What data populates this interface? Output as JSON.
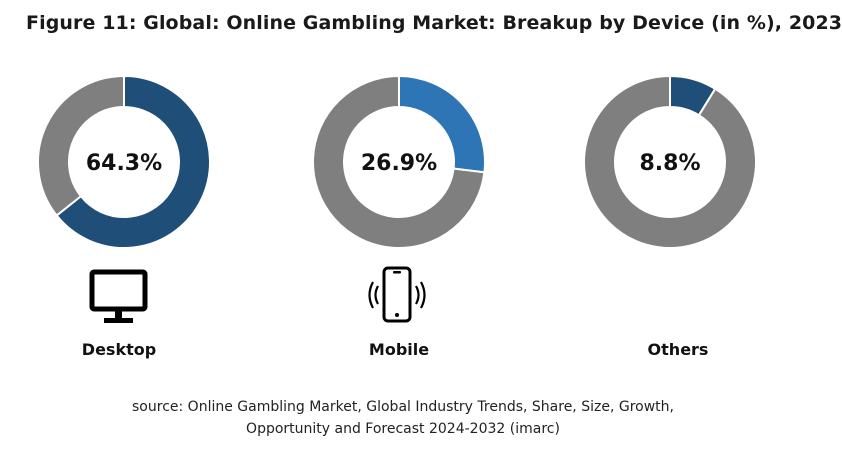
{
  "chart_data": {
    "type": "pie",
    "variant": "donut",
    "title": "Figure 11: Global: Online Gambling Market: Breakup by Device (in %), 2023",
    "categories": [
      "Desktop",
      "Mobile",
      "Others"
    ],
    "values": [
      64.3,
      26.9,
      8.8
    ],
    "center_labels": [
      "64.3%",
      "26.9%",
      "8.8%"
    ],
    "colors": {
      "desktop_segment": "#1f4e79",
      "mobile_segment": "#2e75b6",
      "others_segment": "#1f4e79",
      "remainder": "#7f7f7f"
    },
    "icons": [
      "monitor-icon",
      "smartphone-icon",
      null
    ]
  },
  "source": {
    "line1": "source: Online Gambling Market, Global Industry Trends, Share, Size, Growth,",
    "line2": "Opportunity and Forecast 2024-2032 (imarc)"
  }
}
